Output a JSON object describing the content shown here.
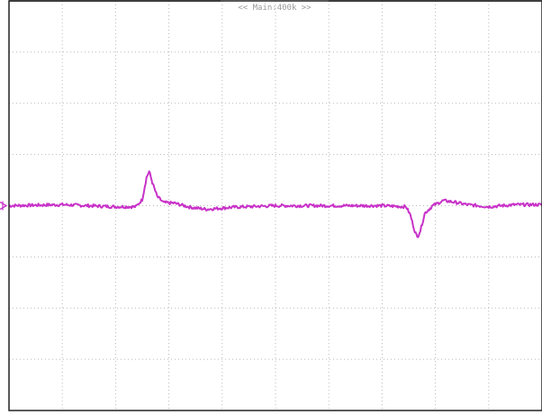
{
  "window": {
    "status_text": "<< Main:400k >>"
  },
  "chart_data": {
    "type": "line",
    "title": "",
    "xlabel": "",
    "ylabel": "",
    "grid": true,
    "x_divisions": 10,
    "y_divisions": 8,
    "xlim": [
      0,
      10
    ],
    "ylim": [
      -4,
      4
    ],
    "series": [
      {
        "color": "#c832c8",
        "points": [
          [
            0.0,
            0.0
          ],
          [
            1.0,
            0.02
          ],
          [
            2.0,
            -0.02
          ],
          [
            2.38,
            -0.02
          ],
          [
            2.5,
            0.12
          ],
          [
            2.58,
            0.55
          ],
          [
            2.63,
            0.67
          ],
          [
            2.69,
            0.45
          ],
          [
            2.78,
            0.18
          ],
          [
            2.9,
            0.06
          ],
          [
            3.1,
            0.05
          ],
          [
            3.4,
            -0.03
          ],
          [
            3.7,
            -0.07
          ],
          [
            4.2,
            -0.03
          ],
          [
            5.0,
            0.0
          ],
          [
            6.0,
            0.0
          ],
          [
            7.0,
            0.0
          ],
          [
            7.45,
            -0.02
          ],
          [
            7.53,
            -0.18
          ],
          [
            7.6,
            -0.45
          ],
          [
            7.66,
            -0.62
          ],
          [
            7.72,
            -0.48
          ],
          [
            7.8,
            -0.15
          ],
          [
            7.95,
            0.0
          ],
          [
            8.15,
            0.1
          ],
          [
            8.35,
            0.07
          ],
          [
            8.6,
            0.02
          ],
          [
            9.0,
            -0.02
          ],
          [
            9.5,
            0.02
          ],
          [
            10.0,
            0.02
          ]
        ]
      }
    ],
    "markers": {
      "ground": {
        "y": 0,
        "color": "#c832c8"
      }
    }
  }
}
